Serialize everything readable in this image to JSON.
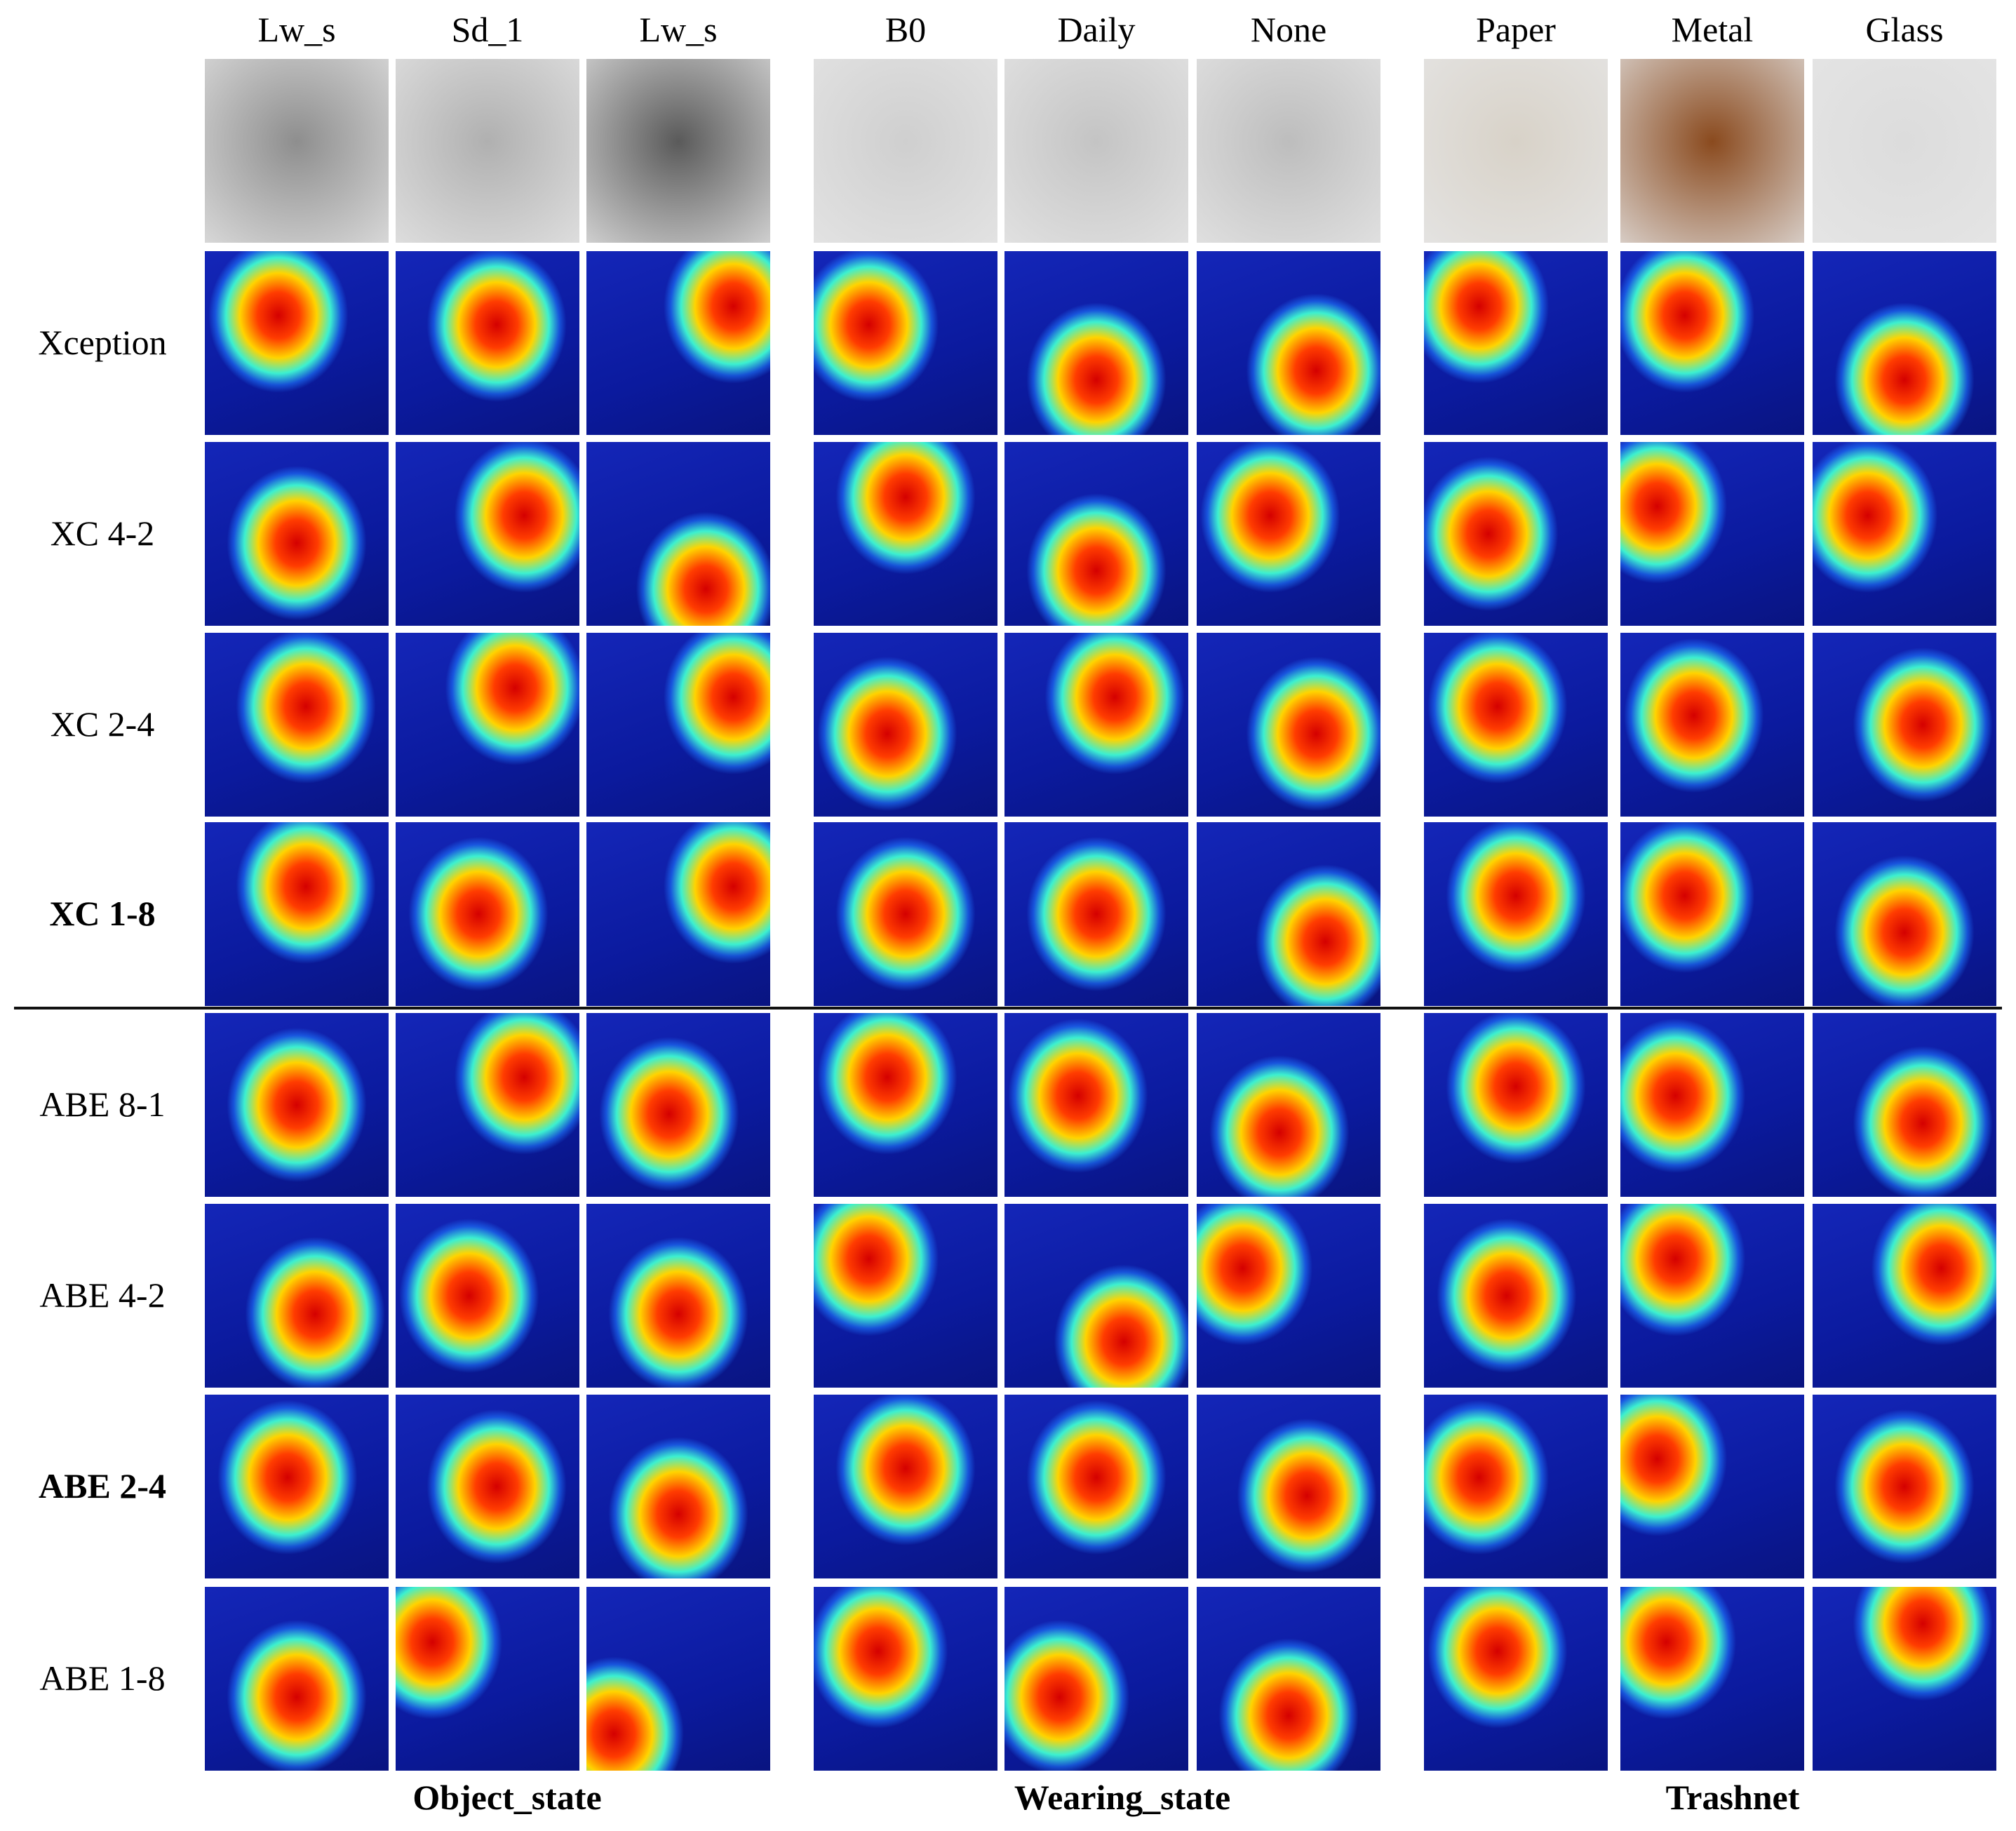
{
  "column_headers": [
    "Lw_s",
    "Sd_1",
    "Lw_s",
    "B0",
    "Daily",
    "None",
    "Paper",
    "Metal",
    "Glass"
  ],
  "row_labels": [
    {
      "label": "Xception",
      "bold": false
    },
    {
      "label": "XC 4-2",
      "bold": false
    },
    {
      "label": "XC 2-4",
      "bold": false
    },
    {
      "label": "XC 1-8",
      "bold": true
    },
    {
      "label": "ABE 8-1",
      "bold": false
    },
    {
      "label": "ABE 4-2",
      "bold": false
    },
    {
      "label": "ABE 2-4",
      "bold": true
    },
    {
      "label": "ABE 1-8",
      "bold": false
    }
  ],
  "group_labels": [
    "Object_state",
    "Wearing_state",
    "Trashnet"
  ],
  "photo_colors": [
    "#8e8e8e",
    "#b0b0b0",
    "#5a5a5a",
    "#cfcfcf",
    "#c4c4c4",
    "#bdbdbd",
    "#d8d2c8",
    "#8a4a1e",
    "#dcdcdc"
  ],
  "heatmap_palette": {
    "background": "#0b1a9e",
    "hot": "#d40000"
  },
  "heat_centers": [
    [
      [
        0.4,
        0.35
      ],
      [
        0.55,
        0.4
      ],
      [
        0.8,
        0.3
      ],
      [
        0.3,
        0.4
      ],
      [
        0.5,
        0.7
      ],
      [
        0.65,
        0.65
      ],
      [
        0.3,
        0.3
      ],
      [
        0.35,
        0.35
      ],
      [
        0.5,
        0.7
      ]
    ],
    [
      [
        0.5,
        0.55
      ],
      [
        0.7,
        0.4
      ],
      [
        0.65,
        0.8
      ],
      [
        0.5,
        0.3
      ],
      [
        0.5,
        0.7
      ],
      [
        0.4,
        0.4
      ],
      [
        0.35,
        0.5
      ],
      [
        0.2,
        0.35
      ],
      [
        0.3,
        0.4
      ]
    ],
    [
      [
        0.55,
        0.4
      ],
      [
        0.65,
        0.3
      ],
      [
        0.8,
        0.35
      ],
      [
        0.4,
        0.55
      ],
      [
        0.6,
        0.35
      ],
      [
        0.65,
        0.55
      ],
      [
        0.4,
        0.4
      ],
      [
        0.4,
        0.45
      ],
      [
        0.6,
        0.5
      ]
    ],
    [
      [
        0.55,
        0.35
      ],
      [
        0.45,
        0.5
      ],
      [
        0.8,
        0.35
      ],
      [
        0.5,
        0.5
      ],
      [
        0.5,
        0.5
      ],
      [
        0.7,
        0.65
      ],
      [
        0.5,
        0.4
      ],
      [
        0.35,
        0.4
      ],
      [
        0.5,
        0.6
      ]
    ],
    [
      [
        0.5,
        0.5
      ],
      [
        0.7,
        0.35
      ],
      [
        0.45,
        0.55
      ],
      [
        0.4,
        0.35
      ],
      [
        0.4,
        0.45
      ],
      [
        0.45,
        0.65
      ],
      [
        0.5,
        0.4
      ],
      [
        0.3,
        0.45
      ],
      [
        0.6,
        0.6
      ]
    ],
    [
      [
        0.6,
        0.6
      ],
      [
        0.4,
        0.5
      ],
      [
        0.5,
        0.6
      ],
      [
        0.3,
        0.3
      ],
      [
        0.65,
        0.75
      ],
      [
        0.25,
        0.35
      ],
      [
        0.45,
        0.5
      ],
      [
        0.3,
        0.3
      ],
      [
        0.7,
        0.35
      ]
    ],
    [
      [
        0.45,
        0.45
      ],
      [
        0.55,
        0.5
      ],
      [
        0.5,
        0.65
      ],
      [
        0.5,
        0.4
      ],
      [
        0.5,
        0.45
      ],
      [
        0.6,
        0.55
      ],
      [
        0.3,
        0.45
      ],
      [
        0.2,
        0.35
      ],
      [
        0.5,
        0.5
      ]
    ],
    [
      [
        0.5,
        0.6
      ],
      [
        0.2,
        0.3
      ],
      [
        0.15,
        0.8
      ],
      [
        0.35,
        0.35
      ],
      [
        0.3,
        0.6
      ],
      [
        0.5,
        0.7
      ],
      [
        0.4,
        0.35
      ],
      [
        0.25,
        0.3
      ],
      [
        0.6,
        0.2
      ]
    ]
  ]
}
